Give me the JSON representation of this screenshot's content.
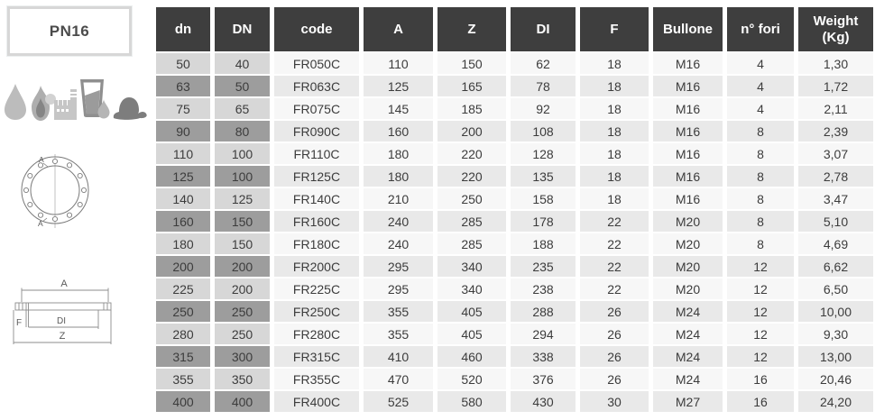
{
  "left_panel": {
    "pn_badge": "PN16",
    "application_icons": [
      "water-drop",
      "flame",
      "factory",
      "drinking-glass-with-drop",
      "firefighter-helmet"
    ],
    "front_view": {
      "section_marker": "A"
    },
    "section_view": {
      "dim_a": "A",
      "dim_f": "F",
      "dim_di": "DI",
      "dim_z": "Z"
    }
  },
  "table": {
    "headers": [
      "dn",
      "DN",
      "code",
      "A",
      "Z",
      "DI",
      "F",
      "Bullone",
      "n° fori",
      "Weight\n(Kg)"
    ],
    "rows": [
      [
        "50",
        "40",
        "FR050C",
        "110",
        "150",
        "62",
        "18",
        "M16",
        "4",
        "1,30"
      ],
      [
        "63",
        "50",
        "FR063C",
        "125",
        "165",
        "78",
        "18",
        "M16",
        "4",
        "1,72"
      ],
      [
        "75",
        "65",
        "FR075C",
        "145",
        "185",
        "92",
        "18",
        "M16",
        "4",
        "2,11"
      ],
      [
        "90",
        "80",
        "FR090C",
        "160",
        "200",
        "108",
        "18",
        "M16",
        "8",
        "2,39"
      ],
      [
        "110",
        "100",
        "FR110C",
        "180",
        "220",
        "128",
        "18",
        "M16",
        "8",
        "3,07"
      ],
      [
        "125",
        "100",
        "FR125C",
        "180",
        "220",
        "135",
        "18",
        "M16",
        "8",
        "2,78"
      ],
      [
        "140",
        "125",
        "FR140C",
        "210",
        "250",
        "158",
        "18",
        "M16",
        "8",
        "3,47"
      ],
      [
        "160",
        "150",
        "FR160C",
        "240",
        "285",
        "178",
        "22",
        "M20",
        "8",
        "5,10"
      ],
      [
        "180",
        "150",
        "FR180C",
        "240",
        "285",
        "188",
        "22",
        "M20",
        "8",
        "4,69"
      ],
      [
        "200",
        "200",
        "FR200C",
        "295",
        "340",
        "235",
        "22",
        "M20",
        "12",
        "6,62"
      ],
      [
        "225",
        "200",
        "FR225C",
        "295",
        "340",
        "238",
        "22",
        "M20",
        "12",
        "6,50"
      ],
      [
        "250",
        "250",
        "FR250C",
        "355",
        "405",
        "288",
        "26",
        "M24",
        "12",
        "10,00"
      ],
      [
        "280",
        "250",
        "FR280C",
        "355",
        "405",
        "294",
        "26",
        "M24",
        "12",
        "9,30"
      ],
      [
        "315",
        "300",
        "FR315C",
        "410",
        "460",
        "338",
        "26",
        "M24",
        "12",
        "13,00"
      ],
      [
        "355",
        "350",
        "FR355C",
        "470",
        "520",
        "376",
        "26",
        "M24",
        "16",
        "20,46"
      ],
      [
        "400",
        "400",
        "FR400C",
        "525",
        "580",
        "430",
        "30",
        "M27",
        "16",
        "24,20"
      ]
    ]
  },
  "colors": {
    "header_bg": "#3e3e3e",
    "header_text": "#ffffff",
    "dn_cell_light": "#d7d7d7",
    "dn_cell_dark": "#9d9d9d",
    "row_light": "#f7f7f7",
    "row_dark": "#e9e9e9",
    "cell_text": "#3c3c3c",
    "badge_border": "#d7d7d7",
    "icon_gray": "#b5b5b5",
    "drawing_line": "#8c8c8c"
  }
}
